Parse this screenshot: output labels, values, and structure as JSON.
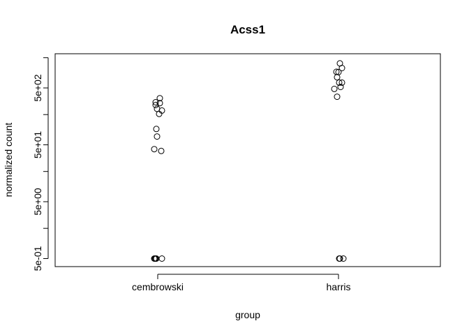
{
  "chart_data": {
    "type": "scatter",
    "title": "Acss1",
    "xlabel": "group",
    "ylabel": "normalized count",
    "categories": [
      "cembrowski",
      "harris"
    ],
    "y_scale": "log",
    "ylim": [
      0.42,
      1400
    ],
    "y_ticks": [
      0.5,
      1.7,
      5,
      17,
      50,
      170,
      500,
      1700
    ],
    "y_tick_labels": [
      "5e-01",
      "",
      "5e+00",
      "",
      "5e+01",
      "",
      "5e+02",
      ""
    ],
    "grid": false,
    "legend": "none",
    "groups": [
      {
        "category": "cembrowski",
        "points": [
          {
            "jitter": -0.05,
            "y": 0.5
          },
          {
            "jitter": -0.04,
            "y": 0.5
          },
          {
            "jitter": -0.03,
            "y": 0.5
          },
          {
            "jitter": -0.02,
            "y": 0.5
          },
          {
            "jitter": 0.06,
            "y": 0.5
          },
          {
            "jitter": -0.05,
            "y": 42
          },
          {
            "jitter": 0.05,
            "y": 39
          },
          {
            "jitter": -0.01,
            "y": 70
          },
          {
            "jitter": -0.02,
            "y": 95
          },
          {
            "jitter": 0.02,
            "y": 175
          },
          {
            "jitter": 0.06,
            "y": 200
          },
          {
            "jitter": -0.01,
            "y": 215
          },
          {
            "jitter": -0.03,
            "y": 250
          },
          {
            "jitter": 0.03,
            "y": 270
          },
          {
            "jitter": -0.03,
            "y": 280
          },
          {
            "jitter": 0.03,
            "y": 330
          }
        ]
      },
      {
        "category": "harris",
        "points": [
          {
            "jitter": 0.01,
            "y": 0.5
          },
          {
            "jitter": 0.02,
            "y": 0.5
          },
          {
            "jitter": 0.07,
            "y": 0.5
          },
          {
            "jitter": -0.02,
            "y": 350
          },
          {
            "jitter": -0.06,
            "y": 480
          },
          {
            "jitter": 0.03,
            "y": 520
          },
          {
            "jitter": 0.01,
            "y": 620
          },
          {
            "jitter": 0.05,
            "y": 620
          },
          {
            "jitter": -0.02,
            "y": 770
          },
          {
            "jitter": 0.0,
            "y": 950
          },
          {
            "jitter": -0.03,
            "y": 960
          },
          {
            "jitter": 0.05,
            "y": 1120
          },
          {
            "jitter": 0.02,
            "y": 1350
          }
        ]
      }
    ]
  }
}
